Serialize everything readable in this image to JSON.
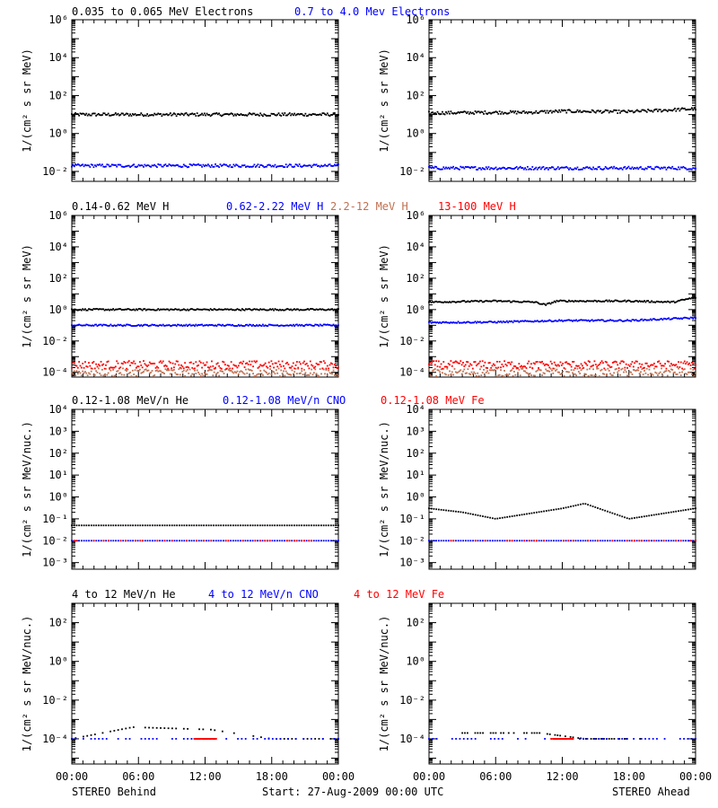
{
  "colors": {
    "black": "#000000",
    "blue": "#0000ff",
    "brown": "#c07050",
    "red": "#ff0000"
  },
  "x_ticks": [
    "00:00",
    "06:00",
    "12:00",
    "18:00",
    "00:00"
  ],
  "footer": {
    "left": "STEREO Behind",
    "center": "Start: 27-Aug-2009 00:00 UTC",
    "right": "STEREO Ahead"
  },
  "rows": [
    {
      "ylabel": "1/(cm² s sr MeV)",
      "legend": [
        {
          "text": "0.035 to 0.065 MeV Electrons",
          "color": "#000000"
        },
        {
          "text": "0.7 to 4.0 Mev Electrons",
          "color": "#0000ff"
        }
      ],
      "yticks": [
        "10⁻²",
        "10⁰",
        "10²",
        "10⁴",
        "10⁶"
      ]
    },
    {
      "ylabel": "1/(cm² s sr MeV)",
      "legend": [
        {
          "text": "0.14-0.62 MeV H",
          "color": "#000000"
        },
        {
          "text": "0.62-2.22 MeV H",
          "color": "#0000ff"
        },
        {
          "text": "2.2-12 MeV H",
          "color": "#c07050"
        },
        {
          "text": "13-100 MeV H",
          "color": "#ff0000"
        }
      ],
      "yticks": [
        "10⁻⁴",
        "10⁻²",
        "10⁰",
        "10²",
        "10⁴",
        "10⁶"
      ]
    },
    {
      "ylabel": "1/(cm² s sr MeV/nuc.)",
      "legend": [
        {
          "text": "0.12-1.08 MeV/n He",
          "color": "#000000"
        },
        {
          "text": "0.12-1.08 MeV/n CNO",
          "color": "#0000ff"
        },
        {
          "text": "0.12-1.08 MeV Fe",
          "color": "#ff0000"
        }
      ],
      "yticks": [
        "10⁻³",
        "10⁻²",
        "10⁻¹",
        "10⁰",
        "10¹",
        "10²",
        "10³",
        "10⁴"
      ]
    },
    {
      "ylabel": "1/(cm² s sr MeV/nuc.)",
      "legend": [
        {
          "text": "4 to 12 MeV/n He",
          "color": "#000000"
        },
        {
          "text": "4 to 12 MeV/n CNO",
          "color": "#0000ff"
        },
        {
          "text": "4 to 12 MeV Fe",
          "color": "#ff0000"
        }
      ],
      "yticks": [
        "10⁻⁴",
        "10⁻²",
        "10⁰",
        "10²"
      ]
    }
  ],
  "chart_data": [
    {
      "type": "scatter",
      "yscale": "log",
      "ylim": [
        0.003,
        1000000
      ],
      "xlim": [
        0,
        24
      ],
      "series": [
        {
          "name": "0.035 to 0.065 MeV Electrons",
          "color": "#000000",
          "points": [
            [
              0,
              10
            ],
            [
              6,
              10
            ],
            [
              12,
              10
            ],
            [
              18,
              10
            ],
            [
              24,
              10
            ]
          ]
        },
        {
          "name": "0.7 to 4.0 Mev Electrons",
          "color": "#0000ff",
          "points": [
            [
              0,
              0.02
            ],
            [
              6,
              0.02
            ],
            [
              12,
              0.02
            ],
            [
              18,
              0.02
            ],
            [
              24,
              0.02
            ]
          ]
        }
      ]
    },
    {
      "type": "scatter",
      "yscale": "log",
      "ylim": [
        0.003,
        1000000
      ],
      "xlim": [
        0,
        24
      ],
      "series": [
        {
          "name": "0.035 to 0.065 MeV Electrons",
          "color": "#000000",
          "points": [
            [
              0,
              12
            ],
            [
              6,
              13
            ],
            [
              9,
              13
            ],
            [
              12,
              15
            ],
            [
              18,
              14
            ],
            [
              24,
              20
            ]
          ]
        },
        {
          "name": "0.7 to 4.0 Mev Electrons",
          "color": "#0000ff",
          "points": [
            [
              0,
              0.015
            ],
            [
              6,
              0.015
            ],
            [
              12,
              0.015
            ],
            [
              18,
              0.015
            ],
            [
              24,
              0.015
            ]
          ]
        }
      ]
    },
    {
      "type": "scatter",
      "yscale": "log",
      "ylim": [
        5e-05,
        1000000
      ],
      "xlim": [
        0,
        24
      ],
      "series": [
        {
          "name": "0.14-0.62 MeV H",
          "color": "#000000",
          "points": [
            [
              0,
              1
            ],
            [
              6,
              1
            ],
            [
              12,
              1
            ],
            [
              18,
              1
            ],
            [
              24,
              1
            ]
          ]
        },
        {
          "name": "0.62-2.22 MeV H",
          "color": "#0000ff",
          "points": [
            [
              0,
              0.1
            ],
            [
              6,
              0.1
            ],
            [
              12,
              0.1
            ],
            [
              18,
              0.1
            ],
            [
              24,
              0.1
            ]
          ]
        },
        {
          "name": "2.2-12 MeV H",
          "color": "#c07050",
          "points": [
            [
              0,
              0.0001
            ],
            [
              6,
              0.0001
            ],
            [
              12,
              0.0001
            ],
            [
              18,
              0.0001
            ],
            [
              24,
              0.0001
            ]
          ]
        },
        {
          "name": "13-100 MeV H",
          "color": "#ff0000",
          "points": [
            [
              0,
              0.0003
            ],
            [
              6,
              0.0003
            ],
            [
              12,
              0.0003
            ],
            [
              18,
              0.0003
            ],
            [
              24,
              0.0003
            ]
          ]
        }
      ]
    },
    {
      "type": "scatter",
      "yscale": "log",
      "ylim": [
        5e-05,
        1000000
      ],
      "xlim": [
        0,
        24
      ],
      "series": [
        {
          "name": "0.14-0.62 MeV H",
          "color": "#000000",
          "points": [
            [
              0,
              3
            ],
            [
              6,
              3.5
            ],
            [
              9.5,
              3
            ],
            [
              10.5,
              2
            ],
            [
              11.5,
              3.5
            ],
            [
              18,
              3.5
            ],
            [
              22,
              3
            ],
            [
              24,
              6
            ]
          ]
        },
        {
          "name": "0.62-2.22 MeV H",
          "color": "#0000ff",
          "points": [
            [
              0,
              0.15
            ],
            [
              6,
              0.16
            ],
            [
              12,
              0.2
            ],
            [
              18,
              0.2
            ],
            [
              24,
              0.3
            ]
          ]
        },
        {
          "name": "2.2-12 MeV H",
          "color": "#c07050",
          "points": [
            [
              0,
              0.0001
            ],
            [
              6,
              0.0001
            ],
            [
              12,
              0.0001
            ],
            [
              18,
              0.0001
            ],
            [
              24,
              0.0001
            ]
          ]
        },
        {
          "name": "13-100 MeV H",
          "color": "#ff0000",
          "points": [
            [
              0,
              0.0003
            ],
            [
              6,
              0.0003
            ],
            [
              12,
              0.0003
            ],
            [
              18,
              0.0003
            ],
            [
              24,
              0.0003
            ]
          ]
        }
      ]
    },
    {
      "type": "scatter",
      "yscale": "log",
      "ylim": [
        0.0005,
        10000
      ],
      "xlim": [
        0,
        24
      ],
      "series": [
        {
          "name": "0.12-1.08 MeV/n He",
          "color": "#000000",
          "points": [
            [
              0,
              0.05
            ],
            [
              6,
              0.05
            ],
            [
              12,
              0.05
            ],
            [
              18,
              0.05
            ],
            [
              24,
              0.05
            ]
          ]
        },
        {
          "name": "0.12-1.08 MeV/n CNO",
          "color": "#0000ff",
          "points": [
            [
              0,
              0.01
            ],
            [
              6,
              0.01
            ],
            [
              12,
              0.01
            ],
            [
              18,
              0.01
            ],
            [
              24,
              0.01
            ]
          ]
        },
        {
          "name": "0.12-1.08 MeV Fe",
          "color": "#ff0000",
          "points": [
            [
              0,
              0.01
            ],
            [
              12,
              0.01
            ],
            [
              24,
              0.01
            ]
          ]
        }
      ]
    },
    {
      "type": "scatter",
      "yscale": "log",
      "ylim": [
        0.0005,
        10000
      ],
      "xlim": [
        0,
        24
      ],
      "series": [
        {
          "name": "0.12-1.08 MeV/n He",
          "color": "#000000",
          "points": [
            [
              0,
              0.3
            ],
            [
              3,
              0.2
            ],
            [
              6,
              0.1
            ],
            [
              12,
              0.3
            ],
            [
              14,
              0.5
            ],
            [
              18,
              0.1
            ],
            [
              24,
              0.3
            ]
          ]
        },
        {
          "name": "0.12-1.08 MeV/n CNO",
          "color": "#0000ff",
          "points": [
            [
              0,
              0.01
            ],
            [
              6,
              0.01
            ],
            [
              12,
              0.01
            ],
            [
              18,
              0.01
            ],
            [
              24,
              0.01
            ]
          ]
        },
        {
          "name": "0.12-1.08 MeV Fe",
          "color": "#ff0000",
          "points": [
            [
              0,
              0.01
            ],
            [
              12,
              0.01
            ],
            [
              24,
              0.01
            ]
          ]
        }
      ]
    },
    {
      "type": "scatter",
      "yscale": "log",
      "ylim": [
        5e-06,
        1000
      ],
      "xlim": [
        0,
        24
      ],
      "series": [
        {
          "name": "4 to 12 MeV/n He",
          "color": "#000000",
          "points": [
            [
              0,
              0.0001
            ],
            [
              5.5,
              0.0004
            ],
            [
              12.5,
              0.0003
            ],
            [
              18,
              0.0001
            ],
            [
              24,
              0.0001
            ]
          ]
        },
        {
          "name": "4 to 12 MeV/n CNO",
          "color": "#0000ff",
          "points": [
            [
              0,
              0.0001
            ],
            [
              12,
              0.0001
            ],
            [
              24,
              0.0001
            ]
          ]
        },
        {
          "name": "4 to 12 MeV Fe",
          "color": "#ff0000",
          "points": [
            [
              12,
              0.0001
            ]
          ]
        }
      ]
    },
    {
      "type": "scatter",
      "yscale": "log",
      "ylim": [
        5e-06,
        1000
      ],
      "xlim": [
        0,
        24
      ],
      "series": [
        {
          "name": "4 to 12 MeV/n He",
          "color": "#000000",
          "points": [
            [
              3,
              0.0002
            ],
            [
              10,
              0.0002
            ],
            [
              14,
              0.0001
            ],
            [
              19,
              0.0001
            ]
          ]
        },
        {
          "name": "4 to 12 MeV/n CNO",
          "color": "#0000ff",
          "points": [
            [
              0,
              0.0001
            ],
            [
              12,
              0.0001
            ],
            [
              24,
              0.0001
            ]
          ]
        },
        {
          "name": "4 to 12 MeV Fe",
          "color": "#ff0000",
          "points": [
            [
              12,
              0.0001
            ]
          ]
        }
      ]
    }
  ]
}
